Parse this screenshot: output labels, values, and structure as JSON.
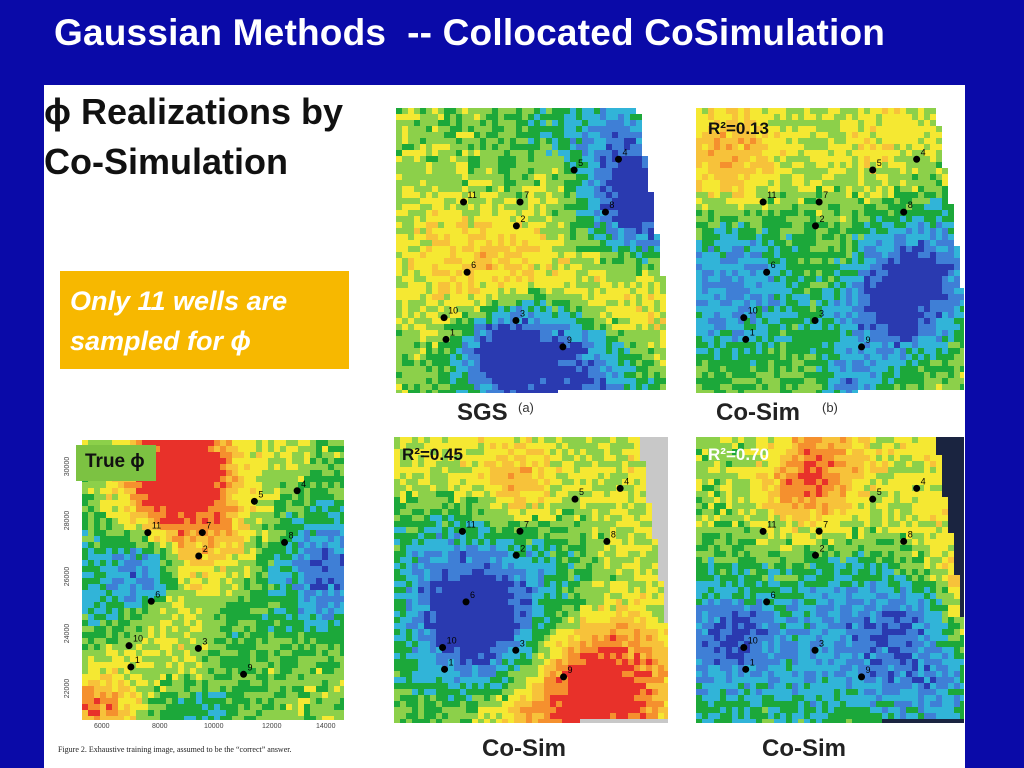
{
  "slide": {
    "title": "Gaussian Methods  -- Collocated CoSimulation",
    "heading_line1": "ϕ Realizations by",
    "heading_line2": "Co-Simulation",
    "note_line1": "Only 11 wells are",
    "note_line2": "sampled for ϕ",
    "true_label": "True ϕ",
    "figure_caption": "Figure 2. Exhaustive training image, assumed to be the “correct” answer.",
    "x_ticks": [
      "6000",
      "8000",
      "10000",
      "12000",
      "14000"
    ],
    "y_ticks": [
      "30000",
      "28000",
      "26000",
      "24000",
      "22000"
    ],
    "wells": [
      "1",
      "2",
      "3",
      "4",
      "5",
      "6",
      "7",
      "8",
      "9",
      "10",
      "11"
    ]
  },
  "panels": [
    {
      "caption": "SGS",
      "sub": "(a)",
      "r2": ""
    },
    {
      "caption": "Co-Sim",
      "sub": "(b)",
      "r2": "R²=0.13"
    },
    {
      "caption": "Co-Sim",
      "sub": "",
      "r2": "R²=0.45"
    },
    {
      "caption": "Co-Sim",
      "sub": "",
      "r2": "R²=0.70"
    }
  ],
  "colors": {
    "background": "#0a0aa8",
    "note_box": "#f7b800",
    "true_box": "#7cc242",
    "high_porosity": "#e8312a",
    "mid_porosity": "#f5e832",
    "low_porosity": "#1ca83a",
    "very_low_porosity": "#2a3ab0"
  }
}
